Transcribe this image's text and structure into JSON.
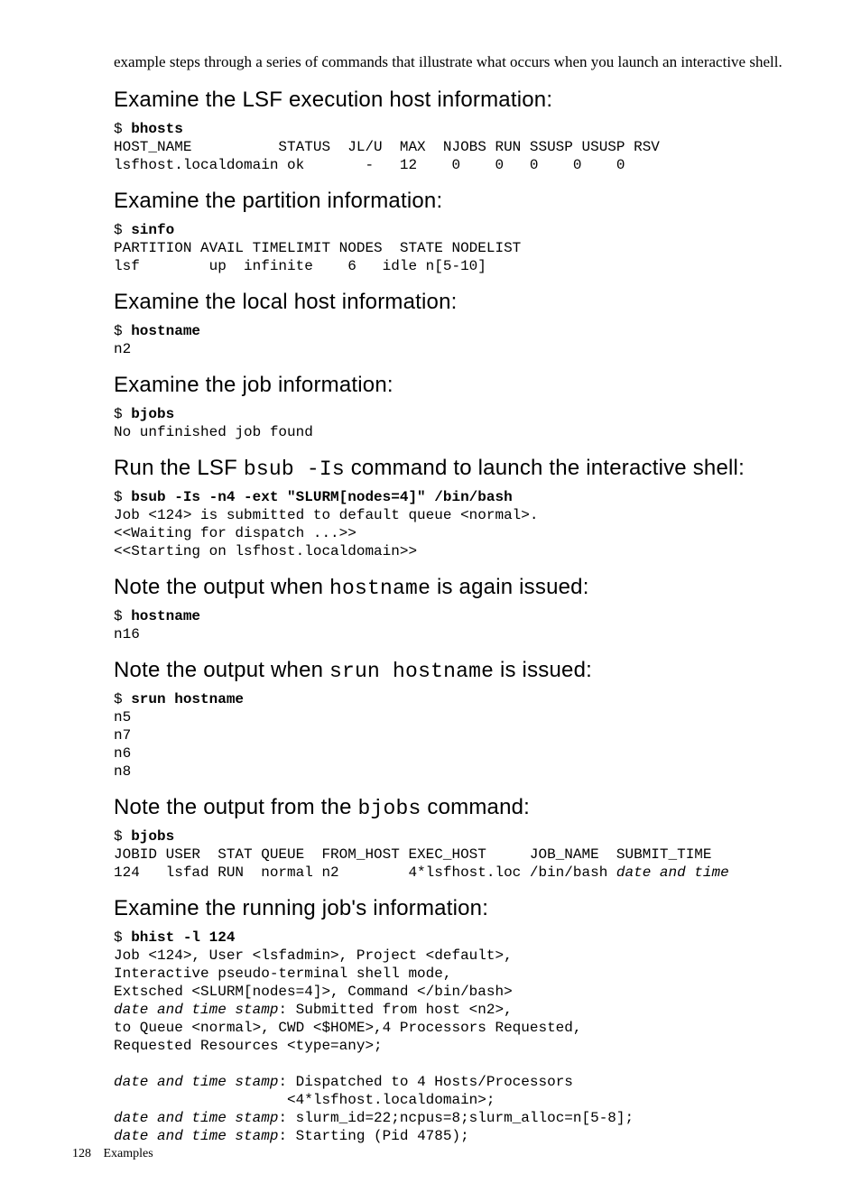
{
  "intro": "example steps through a series of commands that illustrate what occurs when you launch an interactive shell.",
  "sections": [
    {
      "heading_parts": [
        {
          "t": "Examine the LSF execution host information:",
          "mono": false
        }
      ],
      "blocks": [
        [
          {
            "t": "$ "
          },
          {
            "t": "bhosts",
            "b": true
          },
          {
            "nl": true
          },
          {
            "t": "HOST_NAME          STATUS  JL/U  MAX  NJOBS RUN SSUSP USUSP RSV"
          },
          {
            "nl": true
          },
          {
            "t": "lsfhost.localdomain ok       -   12    0    0   0    0    0"
          }
        ]
      ]
    },
    {
      "heading_parts": [
        {
          "t": "Examine the partition information:",
          "mono": false
        }
      ],
      "blocks": [
        [
          {
            "t": "$ "
          },
          {
            "t": "sinfo",
            "b": true
          },
          {
            "nl": true
          },
          {
            "t": "PARTITION AVAIL TIMELIMIT NODES  STATE NODELIST"
          },
          {
            "nl": true
          },
          {
            "t": "lsf        up  infinite    6   idle n[5-10]"
          }
        ]
      ]
    },
    {
      "heading_parts": [
        {
          "t": "Examine the local host information:",
          "mono": false
        }
      ],
      "blocks": [
        [
          {
            "t": "$ "
          },
          {
            "t": "hostname",
            "b": true
          },
          {
            "nl": true
          },
          {
            "t": "n2"
          }
        ]
      ]
    },
    {
      "heading_parts": [
        {
          "t": "Examine the job information:",
          "mono": false
        }
      ],
      "blocks": [
        [
          {
            "t": "$ "
          },
          {
            "t": "bjobs",
            "b": true
          },
          {
            "nl": true
          },
          {
            "t": "No unfinished job found"
          }
        ]
      ]
    },
    {
      "heading_parts": [
        {
          "t": "Run the LSF ",
          "mono": false
        },
        {
          "t": "bsub -Is",
          "mono": true
        },
        {
          "t": " command to launch the interactive shell:",
          "mono": false
        }
      ],
      "blocks": [
        [
          {
            "t": "$ "
          },
          {
            "t": "bsub -Is -n4 -ext \"SLURM[nodes=4]\" /bin/bash",
            "b": true
          },
          {
            "nl": true
          },
          {
            "t": "Job <124> is submitted to default queue <normal>."
          },
          {
            "nl": true
          },
          {
            "t": "<<Waiting for dispatch ...>>"
          },
          {
            "nl": true
          },
          {
            "t": "<<Starting on lsfhost.localdomain>>"
          }
        ]
      ]
    },
    {
      "heading_parts": [
        {
          "t": "Note the output when ",
          "mono": false
        },
        {
          "t": "hostname",
          "mono": true
        },
        {
          "t": " is again issued:",
          "mono": false
        }
      ],
      "blocks": [
        [
          {
            "t": "$ "
          },
          {
            "t": "hostname",
            "b": true
          },
          {
            "nl": true
          },
          {
            "t": "n16"
          }
        ]
      ]
    },
    {
      "heading_parts": [
        {
          "t": "Note the output when ",
          "mono": false
        },
        {
          "t": "srun hostname",
          "mono": true
        },
        {
          "t": " is issued:",
          "mono": false
        }
      ],
      "blocks": [
        [
          {
            "t": "$ "
          },
          {
            "t": "srun hostname",
            "b": true
          },
          {
            "nl": true
          },
          {
            "t": "n5"
          },
          {
            "nl": true
          },
          {
            "t": "n7"
          },
          {
            "nl": true
          },
          {
            "t": "n6"
          },
          {
            "nl": true
          },
          {
            "t": "n8"
          }
        ]
      ]
    },
    {
      "heading_parts": [
        {
          "t": "Note the output from the ",
          "mono": false
        },
        {
          "t": "bjobs",
          "mono": true
        },
        {
          "t": " command:",
          "mono": false
        }
      ],
      "blocks": [
        [
          {
            "t": "$ "
          },
          {
            "t": "bjobs",
            "b": true
          },
          {
            "nl": true
          },
          {
            "t": "JOBID USER  STAT QUEUE  FROM_HOST EXEC_HOST     JOB_NAME  SUBMIT_TIME"
          },
          {
            "nl": true
          },
          {
            "t": "124   lsfad RUN  normal n2        4*lsfhost.loc /bin/bash "
          },
          {
            "t": "date and time",
            "i": true
          }
        ]
      ]
    },
    {
      "heading_parts": [
        {
          "t": "Examine the running job's information:",
          "mono": false
        }
      ],
      "blocks": [
        [
          {
            "t": "$ "
          },
          {
            "t": "bhist -l 124",
            "b": true
          },
          {
            "nl": true
          },
          {
            "t": "Job <124>, User <lsfadmin>, Project <default>,"
          },
          {
            "nl": true
          },
          {
            "t": "Interactive pseudo-terminal shell mode,"
          },
          {
            "nl": true
          },
          {
            "t": "Extsched <SLURM[nodes=4]>, Command </bin/bash>"
          },
          {
            "nl": true
          },
          {
            "t": "date and time stamp",
            "i": true
          },
          {
            "t": ": Submitted from host <n2>,"
          },
          {
            "nl": true
          },
          {
            "t": "to Queue <normal>, CWD <$HOME>,4 Processors Requested,"
          },
          {
            "nl": true
          },
          {
            "t": "Requested Resources <type=any>;"
          },
          {
            "nl": true
          },
          {
            "t": ""
          },
          {
            "nl": true
          },
          {
            "t": "date and time stamp",
            "i": true
          },
          {
            "t": ": Dispatched to 4 Hosts/Processors"
          },
          {
            "nl": true
          },
          {
            "t": "                    <4*lsfhost.localdomain>;"
          },
          {
            "nl": true
          },
          {
            "t": "date and time stamp",
            "i": true
          },
          {
            "t": ": slurm_id=22;ncpus=8;slurm_alloc=n[5-8];"
          },
          {
            "nl": true
          },
          {
            "t": "date and time stamp",
            "i": true
          },
          {
            "t": ": Starting (Pid 4785);"
          }
        ]
      ]
    }
  ],
  "footer": {
    "page": "128",
    "label": "Examples"
  }
}
